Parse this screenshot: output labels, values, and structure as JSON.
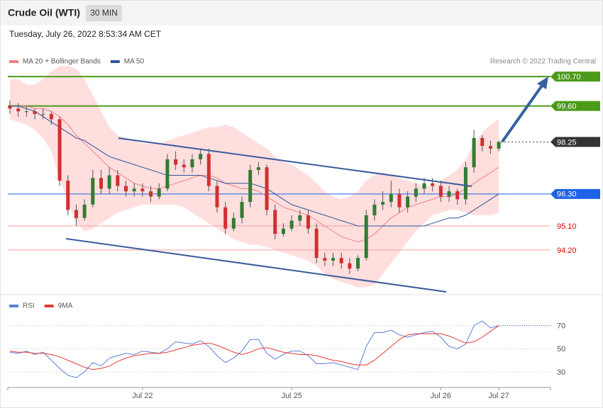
{
  "header": {
    "title": "Crude Oil (WTI)",
    "timeframe": "30 MIN",
    "timestamp": "Tuesday, July 26, 2022 8:53:34 AM CET",
    "credit": "Research © 2022 Trading Central"
  },
  "chart_data": [
    {
      "type": "candlestick",
      "ylim": [
        92.55,
        101.05
      ],
      "up_color": "#2e7d32",
      "down_color": "#d32f2f",
      "legend": "top-left",
      "open": [
        99.6,
        99.5,
        99.4,
        99.4,
        99.3,
        99.3,
        99.1,
        96.8,
        95.7,
        95.4,
        95.9,
        96.9,
        96.5,
        97.0,
        96.6,
        96.4,
        96.5,
        96.4,
        96.2,
        96.5,
        97.6,
        97.4,
        97.3,
        97.6,
        97.8,
        96.6,
        95.8,
        95.0,
        95.4,
        96.0,
        97.2,
        97.3,
        95.7,
        94.8,
        95.0,
        95.3,
        95.5,
        95.0,
        93.9,
        93.8,
        93.9,
        93.7,
        93.5,
        93.9,
        95.5,
        95.9,
        96.0,
        96.3,
        95.8,
        96.2,
        96.5,
        96.7,
        96.6,
        96.2,
        96.4,
        96.1,
        97.3,
        98.4,
        98.1,
        98.0
      ],
      "high": [
        99.8,
        99.7,
        99.6,
        99.5,
        99.5,
        99.4,
        99.2,
        97.0,
        95.9,
        96.1,
        97.2,
        97.2,
        97.3,
        97.2,
        96.8,
        96.7,
        96.7,
        96.6,
        96.7,
        97.8,
        97.9,
        97.6,
        97.8,
        98.0,
        98.0,
        96.8,
        96.0,
        95.6,
        96.2,
        97.4,
        97.5,
        97.4,
        95.9,
        95.2,
        95.5,
        95.7,
        95.7,
        95.2,
        94.1,
        94.1,
        94.1,
        93.9,
        94.0,
        95.7,
        96.1,
        96.4,
        96.8,
        96.5,
        96.4,
        96.7,
        96.9,
        96.9,
        96.8,
        96.6,
        96.5,
        97.5,
        98.7,
        98.5,
        98.3,
        98.3
      ],
      "low": [
        99.3,
        99.2,
        99.2,
        99.1,
        99.1,
        98.9,
        96.6,
        95.5,
        95.1,
        95.3,
        95.8,
        96.3,
        96.3,
        96.4,
        96.2,
        96.2,
        96.2,
        96.0,
        96.1,
        96.4,
        97.2,
        97.1,
        97.1,
        97.4,
        96.4,
        95.6,
        94.8,
        94.9,
        95.2,
        95.8,
        97.0,
        95.5,
        94.6,
        94.7,
        94.9,
        95.1,
        94.8,
        93.7,
        93.6,
        93.6,
        93.5,
        93.3,
        93.4,
        93.8,
        95.3,
        95.7,
        95.8,
        95.6,
        95.6,
        96.0,
        96.3,
        96.4,
        96.0,
        96.0,
        95.9,
        95.9,
        97.1,
        97.9,
        97.8,
        97.9
      ],
      "close": [
        99.5,
        99.4,
        99.4,
        99.3,
        99.3,
        99.1,
        96.8,
        95.7,
        95.4,
        95.9,
        96.9,
        96.5,
        97.0,
        96.6,
        96.4,
        96.5,
        96.4,
        96.2,
        96.5,
        97.6,
        97.4,
        97.3,
        97.6,
        97.8,
        96.6,
        95.8,
        95.0,
        95.4,
        96.0,
        97.2,
        97.3,
        95.7,
        94.8,
        95.0,
        95.3,
        95.5,
        95.0,
        93.9,
        93.8,
        93.9,
        93.7,
        93.5,
        93.9,
        95.5,
        95.9,
        96.0,
        96.3,
        95.8,
        96.2,
        96.5,
        96.7,
        96.6,
        96.2,
        96.4,
        96.1,
        97.3,
        98.4,
        98.1,
        98.0,
        98.25
      ],
      "series": [
        {
          "name": "MA 20 + Bollinger Bands",
          "color": "#f08080",
          "band_color": "#ffdede",
          "values": [
            99.6,
            99.6,
            99.6,
            99.5,
            99.5,
            99.4,
            99.2,
            98.9,
            98.5,
            98.2,
            97.9,
            97.6,
            97.3,
            97.1,
            96.9,
            96.7,
            96.6,
            96.5,
            96.5,
            96.6,
            96.7,
            96.8,
            96.9,
            97.0,
            97.0,
            96.9,
            96.7,
            96.6,
            96.5,
            96.5,
            96.4,
            96.2,
            96.0,
            95.8,
            95.7,
            95.6,
            95.5,
            95.3,
            95.1,
            94.9,
            94.7,
            94.6,
            94.5,
            94.6,
            94.8,
            95.1,
            95.4,
            95.6,
            95.8,
            95.9,
            96.0,
            96.1,
            96.2,
            96.2,
            96.3,
            96.5,
            96.7,
            96.9,
            97.1,
            97.3
          ],
          "upper": [
            100.6,
            100.6,
            100.4,
            100.4,
            100.6,
            100.9,
            101.1,
            101.1,
            101.0,
            100.6,
            100.0,
            99.4,
            98.8,
            98.5,
            98.4,
            98.3,
            98.2,
            98.2,
            98.2,
            98.3,
            98.4,
            98.5,
            98.6,
            98.7,
            98.8,
            98.8,
            98.9,
            98.8,
            98.6,
            98.4,
            98.2,
            98.0,
            97.7,
            97.5,
            97.4,
            97.2,
            97.0,
            96.7,
            96.4,
            96.2,
            96.1,
            96.2,
            96.4,
            96.8,
            97.0,
            97.1,
            97.0,
            96.9,
            96.8,
            96.7,
            96.6,
            96.6,
            96.8,
            97.0,
            97.2,
            97.6,
            98.2,
            98.6,
            98.9,
            99.1
          ],
          "lower": [
            99.1,
            99.0,
            98.9,
            98.7,
            98.4,
            97.9,
            96.9,
            96.0,
            95.2,
            94.9,
            95.0,
            95.2,
            95.4,
            95.6,
            95.7,
            95.8,
            95.9,
            95.9,
            95.9,
            95.9,
            95.9,
            95.8,
            95.6,
            95.4,
            95.2,
            95.0,
            94.8,
            94.6,
            94.5,
            94.4,
            94.4,
            94.3,
            94.2,
            94.1,
            94.0,
            93.9,
            93.8,
            93.6,
            93.3,
            93.1,
            93.0,
            92.9,
            92.8,
            92.8,
            92.9,
            93.3,
            93.7,
            94.1,
            94.5,
            94.9,
            95.2,
            95.5,
            95.6,
            95.7,
            95.7,
            95.6,
            95.5,
            95.5,
            95.5,
            95.6
          ]
        },
        {
          "name": "MA 50",
          "color": "#2e5597",
          "values": [
            99.6,
            99.6,
            99.5,
            99.4,
            99.2,
            99.0,
            98.8,
            98.6,
            98.4,
            98.3,
            98.1,
            97.9,
            97.7,
            97.6,
            97.5,
            97.4,
            97.3,
            97.2,
            97.1,
            97.0,
            97.0,
            97.0,
            97.0,
            97.0,
            96.9,
            96.8,
            96.7,
            96.7,
            96.7,
            96.7,
            96.6,
            96.5,
            96.3,
            96.1,
            95.9,
            95.8,
            95.7,
            95.6,
            95.5,
            95.4,
            95.3,
            95.2,
            95.1,
            95.1,
            95.1,
            95.1,
            95.1,
            95.1,
            95.1,
            95.1,
            95.1,
            95.2,
            95.3,
            95.4,
            95.4,
            95.5,
            95.7,
            95.9,
            96.1,
            96.3
          ]
        }
      ],
      "levels": [
        {
          "value": 100.7,
          "label": "100.70",
          "color": "#4c9a1a",
          "line": "solid",
          "box": true
        },
        {
          "value": 99.6,
          "label": "99.60",
          "color": "#4c9a1a",
          "line": "solid",
          "box": true
        },
        {
          "value": 98.25,
          "label": "98.25",
          "color": "#333333",
          "line": "dotted",
          "box": true
        },
        {
          "value": 96.3,
          "label": "96.30",
          "color": "#1e62e6",
          "line": "solid",
          "box": true
        },
        {
          "value": 95.1,
          "label": "95.10",
          "color": "#f4a0a0",
          "text_color": "#e00000",
          "line": "solid",
          "box": false
        },
        {
          "value": 94.2,
          "label": "94.20",
          "color": "#f4a0a0",
          "text_color": "#e00000",
          "line": "solid",
          "box": false
        }
      ]
    },
    {
      "type": "line",
      "categories": [
        null,
        null,
        null,
        null,
        null,
        null,
        null,
        null,
        null,
        null,
        null,
        null,
        null,
        null,
        null,
        null,
        "Jul 22",
        null,
        null,
        null,
        null,
        null,
        null,
        null,
        null,
        null,
        null,
        null,
        null,
        null,
        null,
        null,
        null,
        null,
        "Jul 25",
        null,
        null,
        null,
        null,
        null,
        null,
        null,
        null,
        null,
        null,
        null,
        null,
        null,
        null,
        null,
        null,
        null,
        "Jul 26",
        null,
        null,
        null,
        null,
        null,
        null,
        "Jul 27"
      ],
      "ylim": [
        16.5,
        79
      ],
      "yticks": [
        30,
        50,
        70
      ],
      "grid": true,
      "legend": "top-left",
      "series": [
        {
          "name": "RSI",
          "color": "#5b7fd6",
          "values": [
            47,
            46,
            48,
            45,
            47,
            40,
            33,
            27,
            25,
            30,
            38,
            35,
            42,
            44,
            46,
            45,
            48,
            47,
            46,
            50,
            56,
            55,
            54,
            57,
            52,
            44,
            38,
            42,
            48,
            58,
            58,
            46,
            41,
            45,
            48,
            48,
            44,
            37,
            37,
            38,
            36,
            34,
            32,
            52,
            64,
            64,
            66,
            62,
            60,
            62,
            64,
            65,
            60,
            52,
            50,
            54,
            70,
            74,
            68,
            70
          ]
        },
        {
          "name": "9MA",
          "color": "#e53935",
          "values": [
            48,
            47,
            47,
            46,
            46,
            45,
            43,
            40,
            37,
            34,
            32,
            33,
            35,
            39,
            42,
            44,
            45,
            46,
            46,
            47,
            49,
            51,
            53,
            54,
            55,
            53,
            50,
            47,
            45,
            47,
            50,
            51,
            49,
            47,
            46,
            45,
            45,
            44,
            42,
            40,
            39,
            37,
            36,
            36,
            40,
            46,
            52,
            58,
            62,
            63,
            63,
            63,
            63,
            61,
            58,
            55,
            56,
            60,
            65,
            70
          ]
        }
      ]
    }
  ]
}
